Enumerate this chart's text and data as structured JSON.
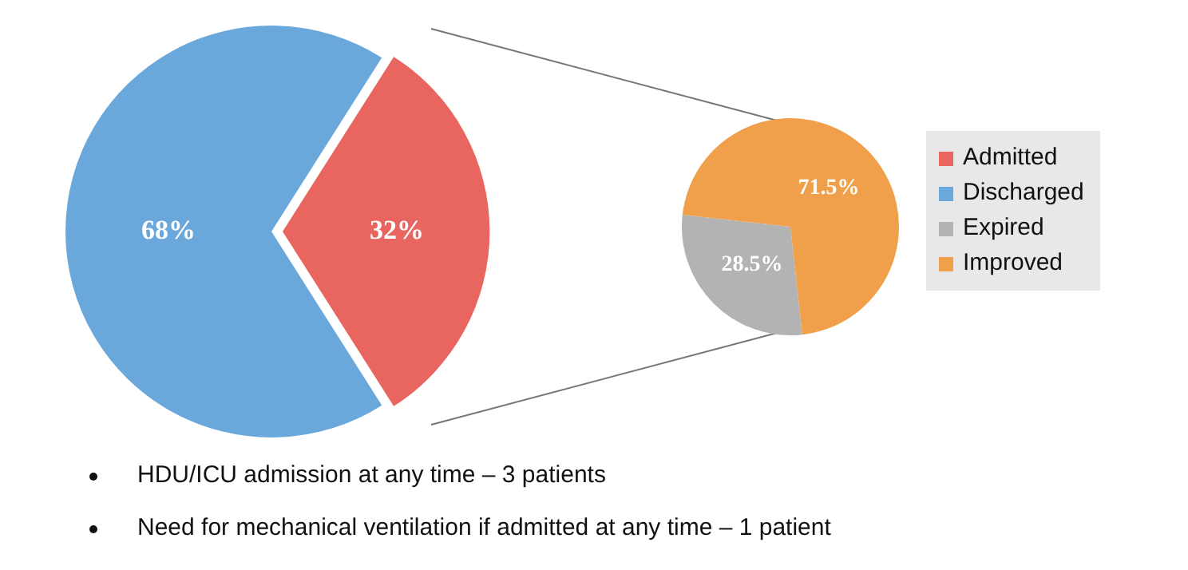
{
  "chart_data": [
    {
      "type": "pie",
      "categories": [
        "Admitted",
        "Discharged"
      ],
      "values": [
        32,
        68
      ],
      "colors": [
        "#e8665f",
        "#6aa8dc"
      ],
      "value_labels": [
        "32%",
        "68%"
      ],
      "legend": "right",
      "annotations": [
        "HDU/ICU admission at any time – 3 patients",
        "Need for mechanical ventilation if admitted at any time – 1 patient"
      ]
    },
    {
      "type": "pie",
      "categories": [
        "Expired",
        "Improved"
      ],
      "values": [
        28.5,
        71.5
      ],
      "colors": [
        "#b3b3b3",
        "#f0a04b"
      ],
      "value_labels": [
        "28.5%",
        "71.5%"
      ],
      "legend": "right"
    }
  ]
}
